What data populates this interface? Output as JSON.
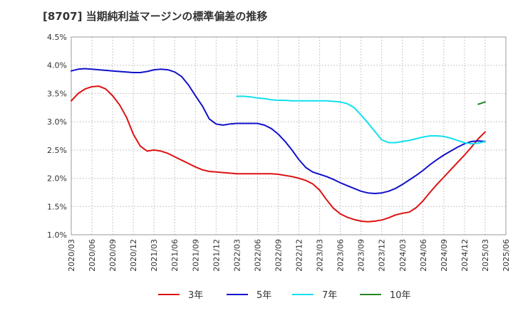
{
  "title": "[8707]  当期純利益マージンの標準偏差の推移",
  "chart_data": {
    "type": "line",
    "title": "[8707]  当期純利益マージンの標準偏差の推移",
    "xlabel": "",
    "ylabel": "",
    "ylim": [
      1.0,
      4.5
    ],
    "yticks": [
      "1.0%",
      "1.5%",
      "2.0%",
      "2.5%",
      "3.0%",
      "3.5%",
      "4.0%",
      "4.5%"
    ],
    "xticks": [
      "2020/03",
      "2020/06",
      "2020/09",
      "2020/12",
      "2021/03",
      "2021/06",
      "2021/09",
      "2021/12",
      "2022/03",
      "2022/06",
      "2022/09",
      "2022/12",
      "2023/03",
      "2023/06",
      "2023/09",
      "2023/12",
      "2024/03",
      "2024/06",
      "2024/09",
      "2024/12",
      "2025/03",
      "2025/06"
    ],
    "grid": true,
    "legend_position": "bottom",
    "series": [
      {
        "name": "3年",
        "color": "#dd1111",
        "x": [
          "2020/03",
          "2020/04",
          "2020/05",
          "2020/06",
          "2020/07",
          "2020/08",
          "2020/09",
          "2020/10",
          "2020/11",
          "2020/12",
          "2021/01",
          "2021/02",
          "2021/03",
          "2021/04",
          "2021/05",
          "2021/06",
          "2021/07",
          "2021/08",
          "2021/09",
          "2021/10",
          "2021/11",
          "2021/12",
          "2022/01",
          "2022/02",
          "2022/03",
          "2022/04",
          "2022/05",
          "2022/06",
          "2022/07",
          "2022/08",
          "2022/09",
          "2022/10",
          "2022/11",
          "2022/12",
          "2023/01",
          "2023/02",
          "2023/03",
          "2023/04",
          "2023/05",
          "2023/06",
          "2023/07",
          "2023/08",
          "2023/09",
          "2023/10",
          "2023/11",
          "2023/12",
          "2024/01",
          "2024/02",
          "2024/03",
          "2024/04",
          "2024/05",
          "2024/06",
          "2024/07",
          "2024/08",
          "2024/09",
          "2024/10",
          "2024/11",
          "2024/12",
          "2025/01",
          "2025/02",
          "2025/03"
        ],
        "values": [
          3.37,
          3.5,
          3.58,
          3.62,
          3.63,
          3.58,
          3.46,
          3.3,
          3.08,
          2.78,
          2.57,
          2.48,
          2.5,
          2.48,
          2.44,
          2.38,
          2.32,
          2.26,
          2.2,
          2.15,
          2.12,
          2.11,
          2.1,
          2.09,
          2.08,
          2.08,
          2.08,
          2.08,
          2.08,
          2.08,
          2.07,
          2.05,
          2.03,
          2.0,
          1.96,
          1.9,
          1.79,
          1.62,
          1.47,
          1.37,
          1.31,
          1.27,
          1.24,
          1.23,
          1.24,
          1.26,
          1.3,
          1.35,
          1.38,
          1.4,
          1.48,
          1.6,
          1.75,
          1.89,
          2.02,
          2.15,
          2.28,
          2.41,
          2.55,
          2.7,
          2.82
        ]
      },
      {
        "name": "5年",
        "color": "#1111cc",
        "x": [
          "2020/03",
          "2020/04",
          "2020/05",
          "2020/06",
          "2020/07",
          "2020/08",
          "2020/09",
          "2020/10",
          "2020/11",
          "2020/12",
          "2021/01",
          "2021/02",
          "2021/03",
          "2021/04",
          "2021/05",
          "2021/06",
          "2021/07",
          "2021/08",
          "2021/09",
          "2021/10",
          "2021/11",
          "2021/12",
          "2022/01",
          "2022/02",
          "2022/03",
          "2022/04",
          "2022/05",
          "2022/06",
          "2022/07",
          "2022/08",
          "2022/09",
          "2022/10",
          "2022/11",
          "2022/12",
          "2023/01",
          "2023/02",
          "2023/03",
          "2023/04",
          "2023/05",
          "2023/06",
          "2023/07",
          "2023/08",
          "2023/09",
          "2023/10",
          "2023/11",
          "2023/12",
          "2024/01",
          "2024/02",
          "2024/03",
          "2024/04",
          "2024/05",
          "2024/06",
          "2024/07",
          "2024/08",
          "2024/09",
          "2024/10",
          "2024/11",
          "2024/12",
          "2025/01",
          "2025/02",
          "2025/03"
        ],
        "values": [
          3.9,
          3.93,
          3.94,
          3.93,
          3.92,
          3.91,
          3.9,
          3.89,
          3.88,
          3.87,
          3.87,
          3.89,
          3.92,
          3.93,
          3.92,
          3.88,
          3.8,
          3.65,
          3.46,
          3.28,
          3.05,
          2.96,
          2.94,
          2.96,
          2.97,
          2.97,
          2.97,
          2.97,
          2.94,
          2.88,
          2.78,
          2.65,
          2.5,
          2.33,
          2.19,
          2.11,
          2.07,
          2.03,
          1.98,
          1.92,
          1.87,
          1.82,
          1.77,
          1.74,
          1.73,
          1.74,
          1.77,
          1.82,
          1.89,
          1.97,
          2.05,
          2.14,
          2.24,
          2.33,
          2.41,
          2.48,
          2.55,
          2.61,
          2.65,
          2.66,
          2.65
        ]
      },
      {
        "name": "7年",
        "color": "#11e0f0",
        "x": [
          "2022/03",
          "2022/04",
          "2022/05",
          "2022/06",
          "2022/07",
          "2022/08",
          "2022/09",
          "2022/10",
          "2022/11",
          "2022/12",
          "2023/01",
          "2023/02",
          "2023/03",
          "2023/04",
          "2023/05",
          "2023/06",
          "2023/07",
          "2023/08",
          "2023/09",
          "2023/10",
          "2023/11",
          "2023/12",
          "2024/01",
          "2024/02",
          "2024/03",
          "2024/04",
          "2024/05",
          "2024/06",
          "2024/07",
          "2024/08",
          "2024/09",
          "2024/10",
          "2024/11",
          "2024/12",
          "2025/01",
          "2025/02",
          "2025/03"
        ],
        "values": [
          3.45,
          3.45,
          3.44,
          3.42,
          3.41,
          3.39,
          3.38,
          3.38,
          3.37,
          3.37,
          3.37,
          3.37,
          3.37,
          3.37,
          3.36,
          3.35,
          3.32,
          3.25,
          3.12,
          2.98,
          2.83,
          2.68,
          2.63,
          2.63,
          2.65,
          2.67,
          2.7,
          2.73,
          2.75,
          2.75,
          2.74,
          2.71,
          2.67,
          2.63,
          2.61,
          2.62,
          2.65
        ]
      },
      {
        "name": "10年",
        "color": "#228822",
        "x": [
          "2025/02",
          "2025/03"
        ],
        "values": [
          3.31,
          3.35
        ]
      }
    ]
  }
}
